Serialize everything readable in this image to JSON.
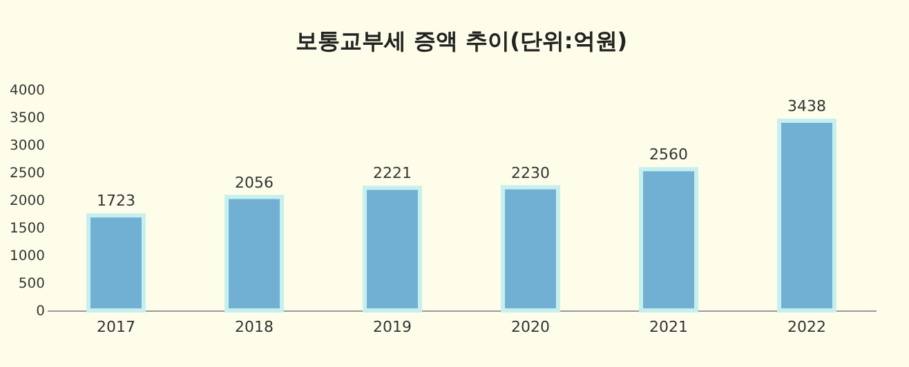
{
  "chart_data": {
    "type": "bar",
    "title": "보통교부세 증액 추이(단위:억원)",
    "categories": [
      "2017",
      "2018",
      "2019",
      "2020",
      "2021",
      "2022"
    ],
    "values": [
      1723,
      2056,
      2221,
      2230,
      2560,
      3438
    ],
    "color": "#72b0d3",
    "ylim": [
      0,
      4000
    ],
    "yticks": [
      0,
      500,
      1000,
      1500,
      2000,
      2500,
      3000,
      3500,
      4000
    ],
    "grid": false,
    "data_labels": true
  }
}
